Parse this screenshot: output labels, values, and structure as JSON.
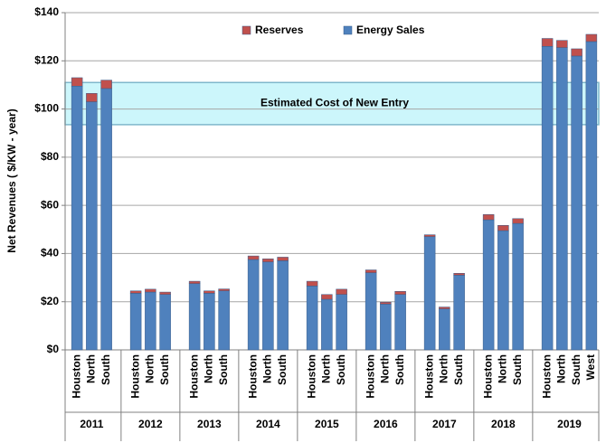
{
  "chart_data": {
    "type": "stacked_bar",
    "y_label": "Net Revenues ( $/KW - year)",
    "groups": [
      {
        "label": "2011",
        "categories": [
          "Houston",
          "North",
          "South"
        ]
      },
      {
        "label": "2012",
        "categories": [
          "Houston",
          "North",
          "South"
        ]
      },
      {
        "label": "2013",
        "categories": [
          "Houston",
          "North",
          "South"
        ]
      },
      {
        "label": "2014",
        "categories": [
          "Houston",
          "North",
          "South"
        ]
      },
      {
        "label": "2015",
        "categories": [
          "Houston",
          "North",
          "South"
        ]
      },
      {
        "label": "2016",
        "categories": [
          "Houston",
          "North",
          "South"
        ]
      },
      {
        "label": "2017",
        "categories": [
          "Houston",
          "North",
          "South"
        ]
      },
      {
        "label": "2018",
        "categories": [
          "Houston",
          "North",
          "South"
        ]
      },
      {
        "label": "2019",
        "categories": [
          "Houston",
          "North",
          "South",
          "West"
        ]
      }
    ],
    "series": [
      {
        "name": "Reserves",
        "color": "#c0504d",
        "values": [
          3.5,
          3.5,
          3.5,
          1,
          1.2,
          1,
          1,
          1,
          0.8,
          1.5,
          1.3,
          1.5,
          2,
          2,
          2.2,
          1.2,
          0.8,
          1.3,
          0.8,
          0.8,
          0.8,
          2.2,
          2.2,
          2,
          3.3,
          3,
          3,
          3
        ]
      },
      {
        "name": "Energy Sales",
        "color": "#4f81bd",
        "values": [
          109.5,
          103,
          108.5,
          23.5,
          24,
          23,
          27.5,
          23.5,
          24.5,
          37.5,
          36.5,
          37,
          26.5,
          21,
          23,
          32,
          19,
          23,
          47,
          17,
          31,
          54,
          49.5,
          52.5,
          126,
          125.5,
          122,
          128
        ]
      }
    ],
    "band": {
      "label": "Estimated Cost of New Entry",
      "range": [
        93.5,
        111
      ],
      "color": "#ccf6fb"
    },
    "ylim": [
      0,
      140
    ],
    "yticks": [
      {
        "value": 0,
        "label": "$0"
      },
      {
        "value": 20,
        "label": "$20"
      },
      {
        "value": 40,
        "label": "$40"
      },
      {
        "value": 60,
        "label": "$60"
      },
      {
        "value": 80,
        "label": "$80"
      },
      {
        "value": 100,
        "label": "$100"
      },
      {
        "value": 120,
        "label": "$120"
      },
      {
        "value": 140,
        "label": "$140"
      }
    ],
    "grid": true,
    "legend": "top"
  }
}
